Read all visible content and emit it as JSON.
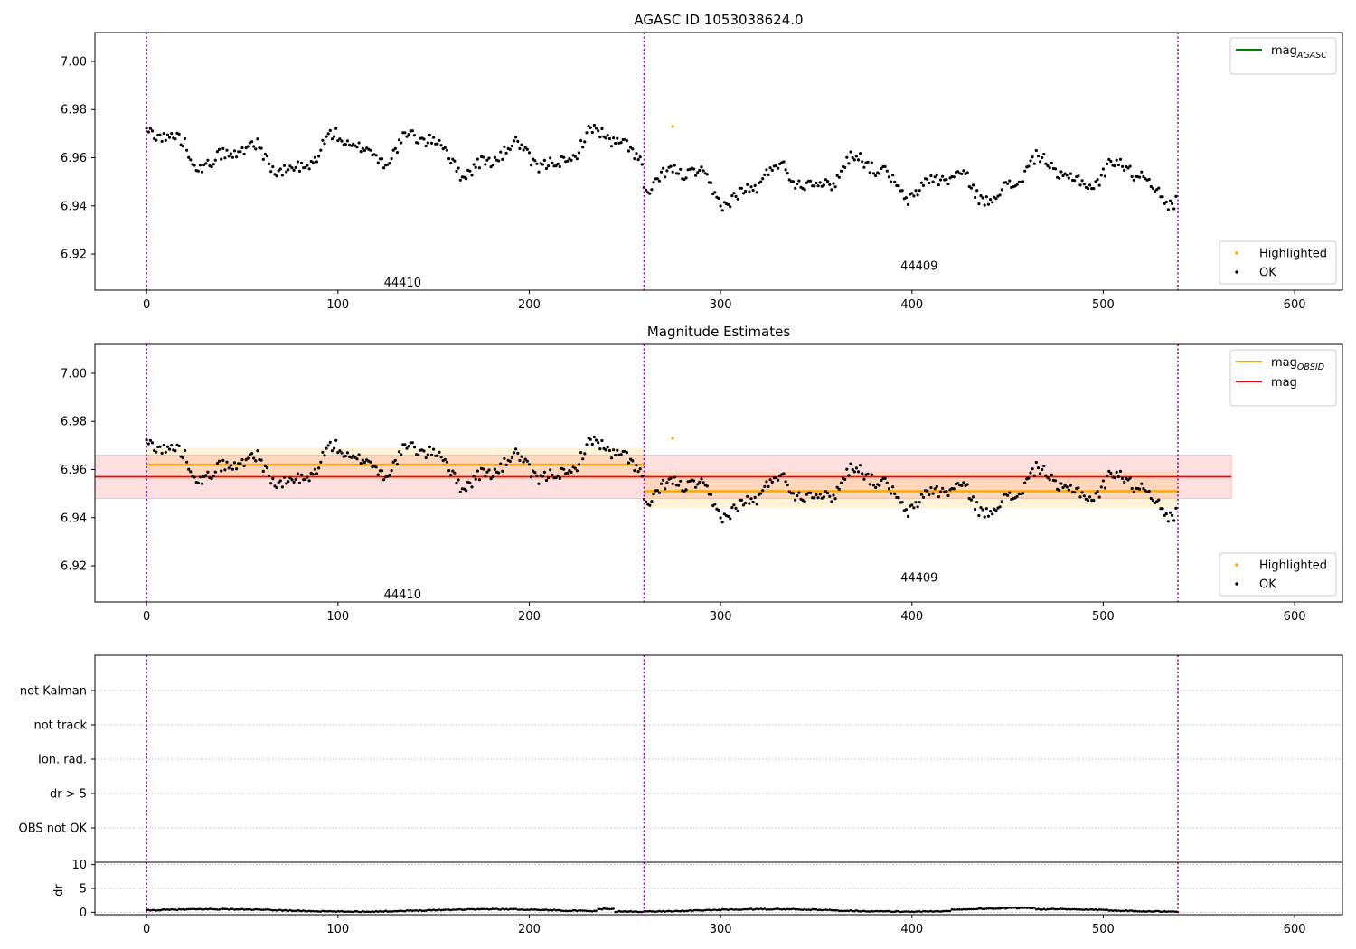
{
  "chart_data": [
    {
      "type": "scatter",
      "title": "AGASC ID 1053038624.0",
      "xlim": [
        -27,
        625
      ],
      "ylim": [
        6.905,
        7.012
      ],
      "xticks": [
        0,
        100,
        200,
        300,
        400,
        500,
        600
      ],
      "yticks": [
        6.92,
        6.94,
        6.96,
        6.98,
        7.0
      ],
      "ytick_labels": [
        "6.92",
        "6.94",
        "6.96",
        "6.98",
        "7.00"
      ],
      "vlines": [
        0,
        260,
        539
      ],
      "obsid_labels": [
        {
          "text": "44410",
          "x": 130,
          "y": 6.908
        },
        {
          "text": "44409",
          "x": 400,
          "y": 6.915
        }
      ],
      "legend_upper": [
        {
          "name": "mag",
          "sub": "AGASC",
          "color": "#008000"
        }
      ],
      "legend_lower": [
        {
          "name": "Highlighted",
          "color": "#ffa500"
        },
        {
          "name": "OK",
          "color": "#000000"
        }
      ],
      "series": [
        {
          "name": "OK",
          "color": "#000000",
          "generator": "walk",
          "n": 540,
          "segments": [
            {
              "x0": 0,
              "x1": 260,
              "mean": 6.962,
              "amp": 0.01
            },
            {
              "x0": 260,
              "x1": 539,
              "mean": 6.951,
              "amp": 0.01
            }
          ]
        },
        {
          "name": "Highlighted",
          "color": "#ffa500",
          "x": [
            275
          ],
          "y": [
            6.973
          ]
        }
      ]
    },
    {
      "type": "scatter",
      "title": "Magnitude Estimates",
      "xlim": [
        -27,
        625
      ],
      "ylim": [
        6.905,
        7.012
      ],
      "xticks": [
        0,
        100,
        200,
        300,
        400,
        500,
        600
      ],
      "yticks": [
        6.92,
        6.94,
        6.96,
        6.98,
        7.0
      ],
      "ytick_labels": [
        "6.92",
        "6.94",
        "6.96",
        "6.98",
        "7.00"
      ],
      "vlines": [
        0,
        260,
        539
      ],
      "obsid_labels": [
        {
          "text": "44410",
          "x": 130,
          "y": 6.908
        },
        {
          "text": "44409",
          "x": 400,
          "y": 6.915
        }
      ],
      "legend_upper": [
        {
          "name": "mag",
          "sub": "OBSID",
          "color": "#ffa500"
        },
        {
          "name": "mag",
          "sub": "",
          "color": "#ff0000"
        }
      ],
      "legend_lower": [
        {
          "name": "Highlighted",
          "color": "#ffa500"
        },
        {
          "name": "OK",
          "color": "#000000"
        }
      ],
      "mag_line": {
        "value": 6.957,
        "band": [
          6.948,
          6.966
        ],
        "x0": -27,
        "x1": 567,
        "color": "#ff0000"
      },
      "obsid_lines": [
        {
          "x0": 0,
          "x1": 260,
          "value": 6.962,
          "band": [
            6.956,
            6.969
          ],
          "color": "#ffa500"
        },
        {
          "x0": 260,
          "x1": 539,
          "value": 6.951,
          "band": [
            6.944,
            6.959
          ],
          "color": "#ffa500"
        }
      ],
      "series": [
        {
          "name": "OK",
          "color": "#000000",
          "same_as_panel": 0
        },
        {
          "name": "Highlighted",
          "color": "#ffa500",
          "x": [
            275
          ],
          "y": [
            6.973
          ]
        }
      ]
    },
    {
      "type": "scatter",
      "title": "",
      "xlim": [
        -27,
        625
      ],
      "flag_labels": [
        "not Kalman",
        "not track",
        "Ion. rad.",
        "dr > 5",
        "OBS not OK"
      ],
      "vlines": [
        0,
        260,
        539
      ]
    },
    {
      "type": "line",
      "title": "",
      "xlim": [
        -27,
        625
      ],
      "ylabel": "dr",
      "ylim": [
        -0.5,
        10.5
      ],
      "yticks": [
        0,
        5,
        10
      ],
      "ytick_labels": [
        "0",
        "5",
        "10"
      ],
      "xticks": [
        0,
        100,
        200,
        300,
        400,
        500,
        600
      ],
      "vlines": [
        0,
        260,
        539
      ],
      "series": [
        {
          "name": "dr",
          "color": "#000000",
          "generator": "dr",
          "n": 540,
          "mean": 0.4
        }
      ]
    }
  ]
}
